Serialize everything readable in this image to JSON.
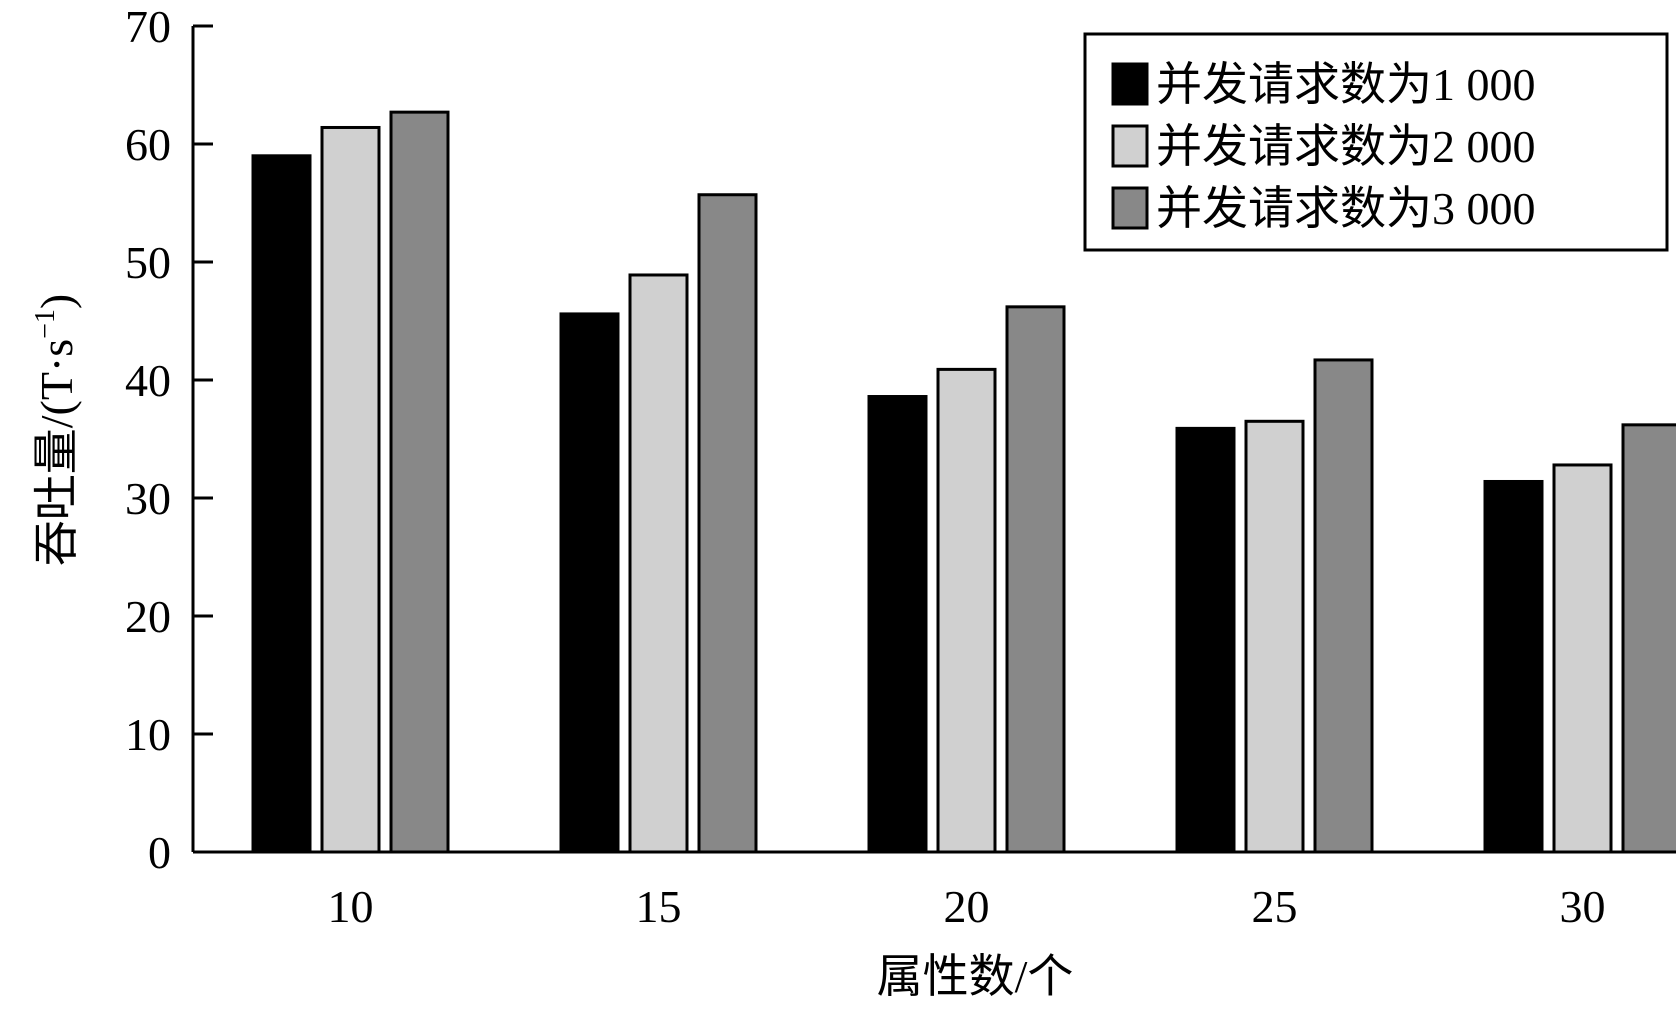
{
  "chart_data": {
    "type": "bar",
    "categories": [
      "10",
      "15",
      "20",
      "25",
      "30"
    ],
    "series": [
      {
        "name": "并发请求数为1 000",
        "color": "#000000",
        "values": [
          59.0,
          45.6,
          38.6,
          35.9,
          31.4
        ]
      },
      {
        "name": "并发请求数为2 000",
        "color": "#d0d0d0",
        "values": [
          61.4,
          48.9,
          40.9,
          36.5,
          32.8
        ]
      },
      {
        "name": "并发请求数为3 000",
        "color": "#888888",
        "values": [
          62.7,
          55.7,
          46.2,
          41.7,
          36.2
        ]
      }
    ],
    "xlabel": "属性数/个",
    "ylabel_prefix": "吞吐量/(T·s",
    "ylabel_sup": "−1",
    "ylabel_suffix": ")",
    "ylim": [
      0,
      70
    ],
    "yticks": [
      "0",
      "10",
      "20",
      "30",
      "40",
      "50",
      "60",
      "70"
    ],
    "grid": false,
    "legend_position": "top-right"
  }
}
